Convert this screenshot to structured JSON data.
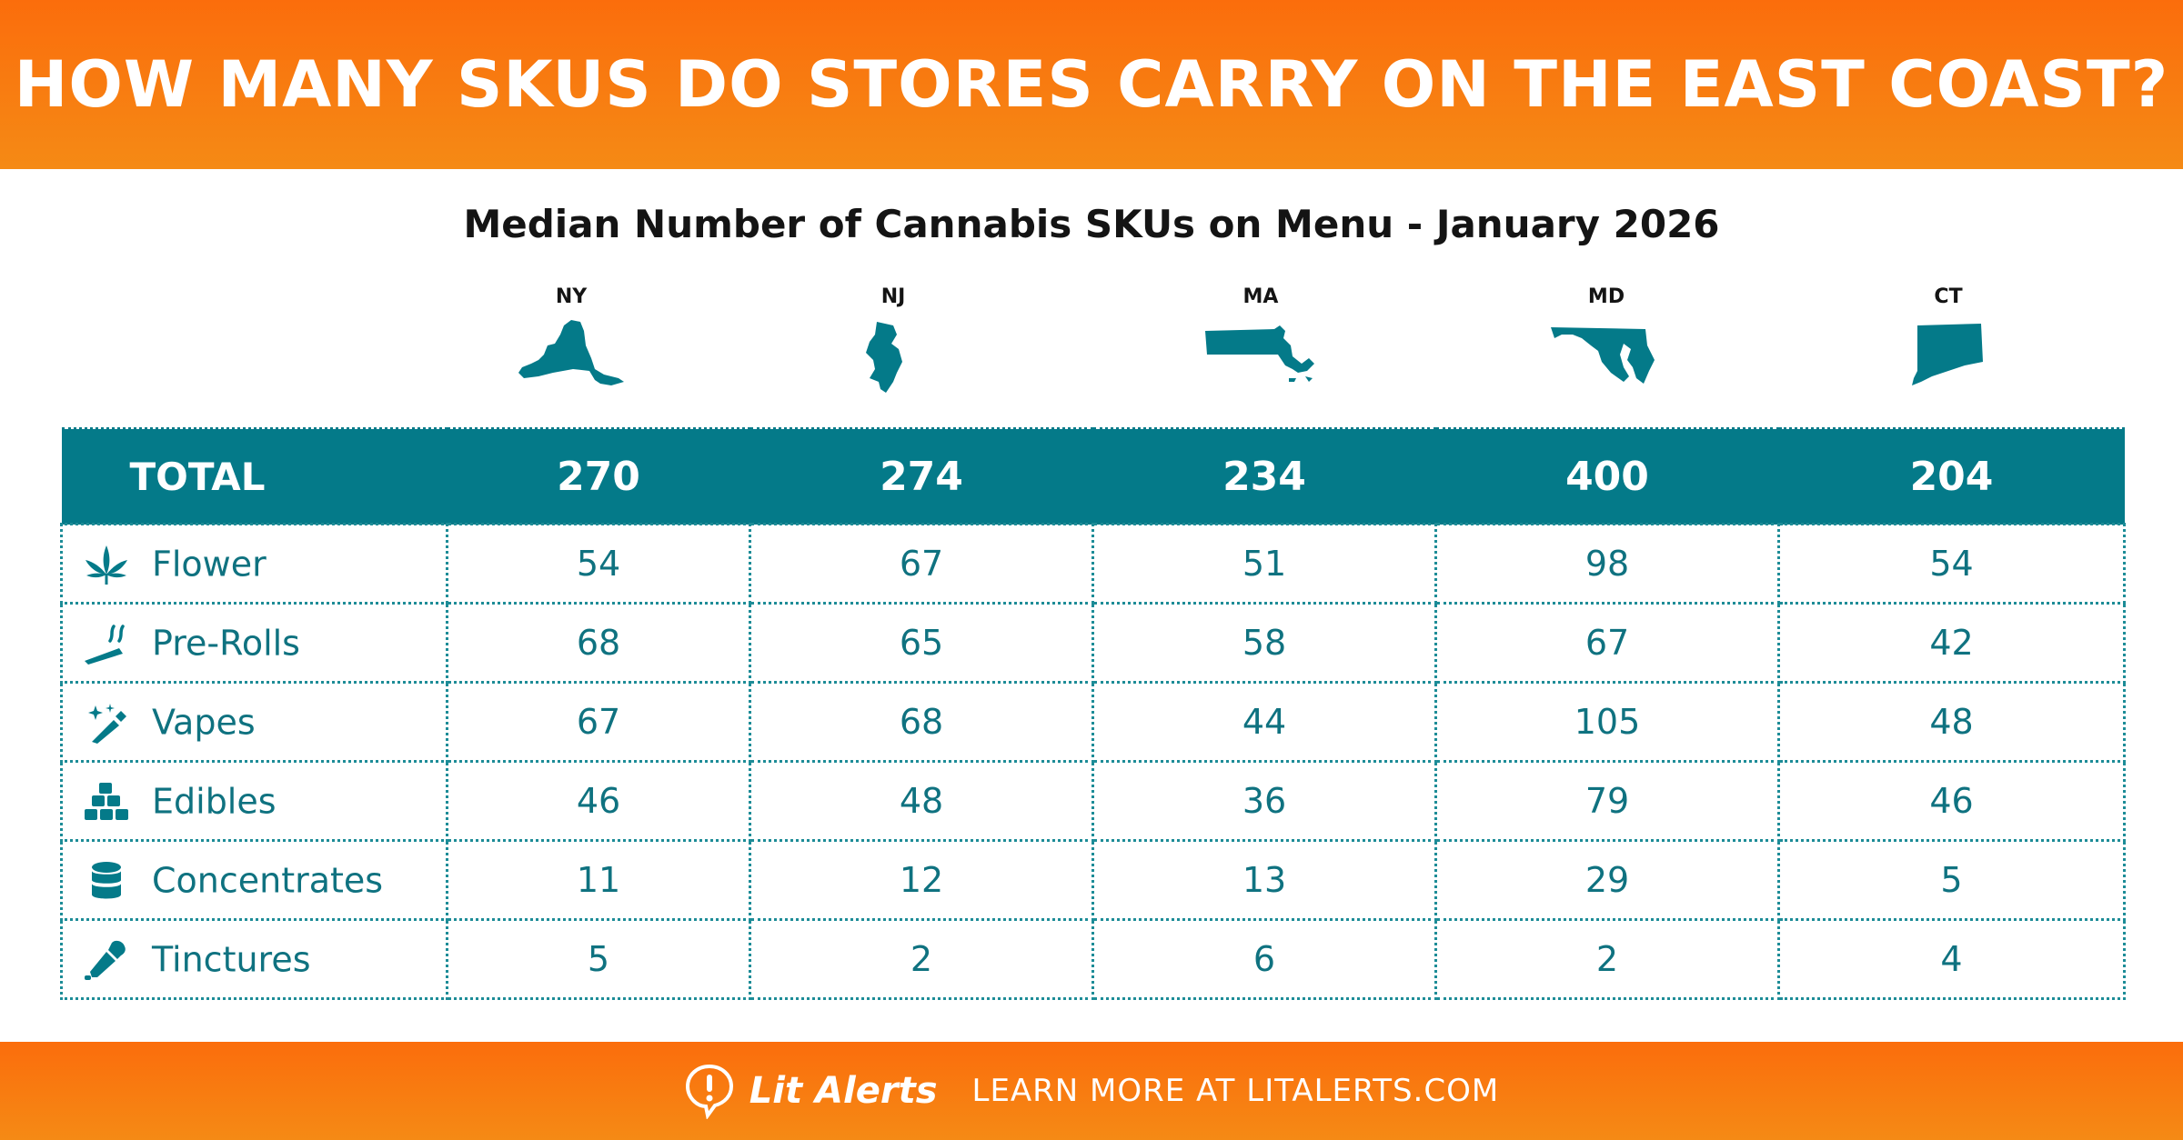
{
  "header": {
    "title": "HOW MANY SKUS DO STORES CARRY ON THE EAST COAST?"
  },
  "subtitle": "Median Number of Cannabis SKUs on Menu - January 2026",
  "states": [
    "NY",
    "NJ",
    "MA",
    "MD",
    "CT"
  ],
  "colors": {
    "banner": "#fb6d0c",
    "teal": "#047a89",
    "text_teal": "#0f7280"
  },
  "chart_data": {
    "type": "table",
    "title": "Median Number of Cannabis SKUs on Menu - January 2026",
    "columns": [
      "NY",
      "NJ",
      "MA",
      "MD",
      "CT"
    ],
    "total": {
      "label": "TOTAL",
      "values": [
        270,
        274,
        234,
        400,
        204
      ]
    },
    "rows": [
      {
        "category": "Flower",
        "icon": "cannabis-leaf-icon",
        "values": [
          54,
          67,
          51,
          98,
          54
        ]
      },
      {
        "category": "Pre-Rolls",
        "icon": "pre-roll-icon",
        "values": [
          68,
          65,
          58,
          67,
          42
        ]
      },
      {
        "category": "Vapes",
        "icon": "vape-pen-icon",
        "values": [
          67,
          68,
          44,
          105,
          48
        ]
      },
      {
        "category": "Edibles",
        "icon": "gummies-icon",
        "values": [
          46,
          48,
          36,
          79,
          46
        ]
      },
      {
        "category": "Concentrates",
        "icon": "concentrate-jar-icon",
        "values": [
          11,
          12,
          13,
          29,
          5
        ]
      },
      {
        "category": "Tinctures",
        "icon": "dropper-icon",
        "values": [
          5,
          2,
          6,
          2,
          4
        ]
      }
    ]
  },
  "footer": {
    "brand": "Lit Alerts",
    "logo_icon": "speech-bubble-alert-icon",
    "cta": "LEARN MORE AT LITALERTS.COM"
  }
}
